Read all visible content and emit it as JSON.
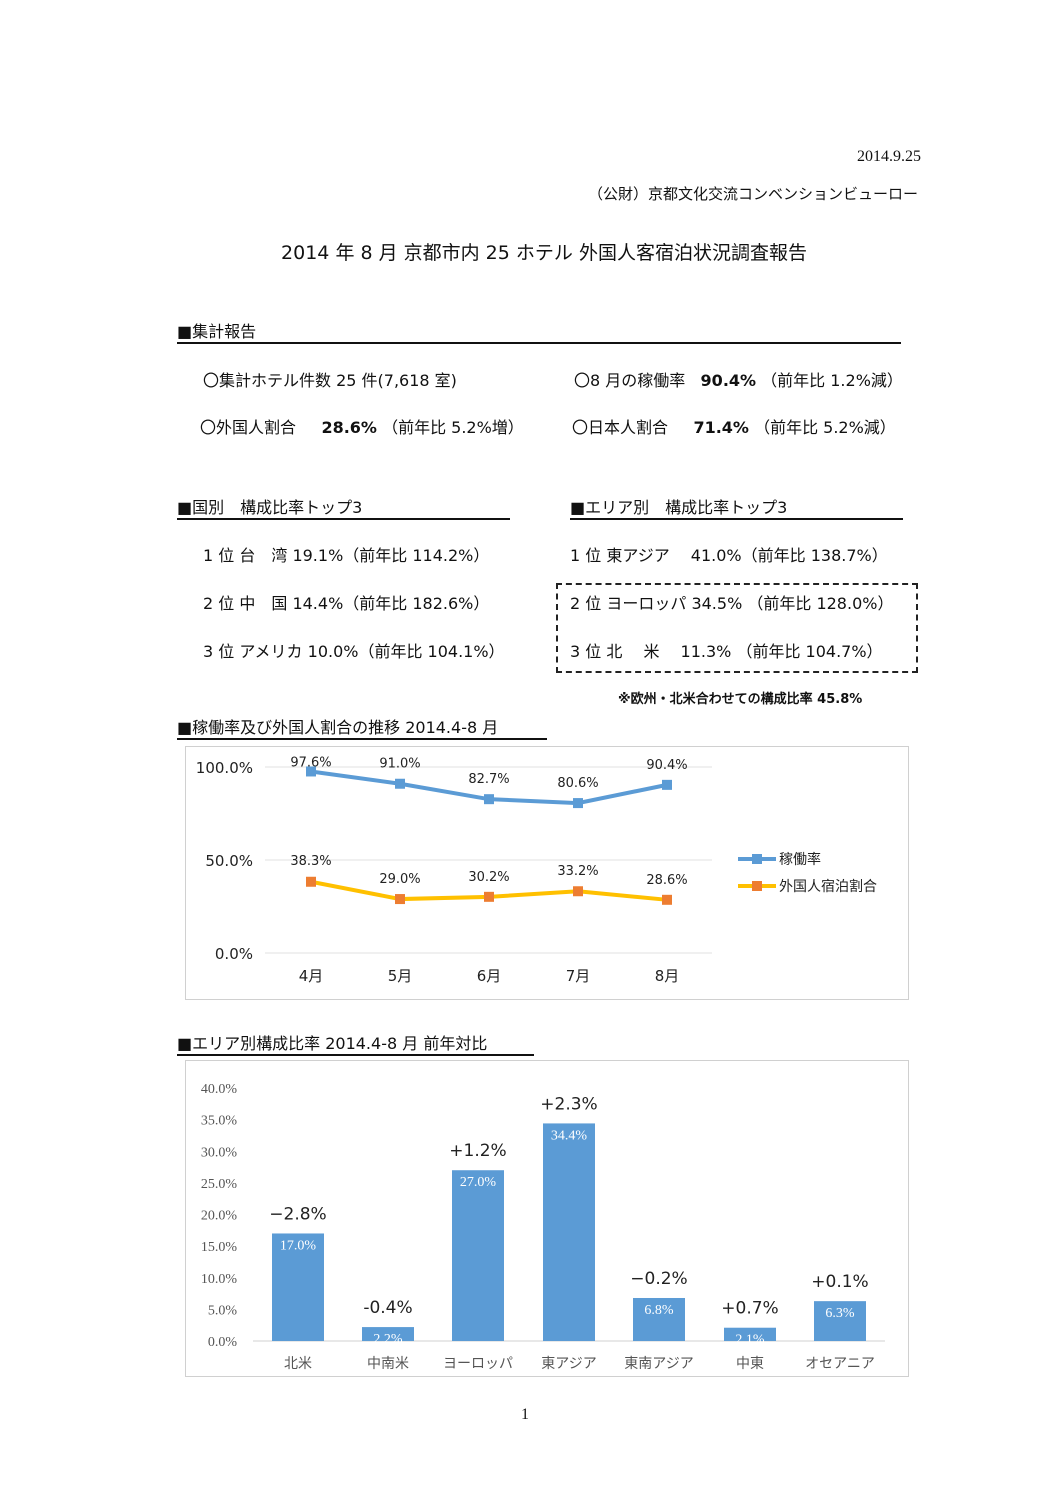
{
  "date": "2014.9.25",
  "organization": "（公財）京都文化交流コンベンションビューロー",
  "title": "2014 年 8 月  京都市内 25 ホテル  外国人客宿泊状況調査報告",
  "summary": {
    "heading": "■集計報告",
    "hotels": "〇集計ホテル件数 25 件(7,618 室)",
    "occupancy_label": "〇8 月の稼働率",
    "occupancy_value": "90.4%",
    "occupancy_yoy": "（前年比 1.2%減）",
    "foreign_label": "〇外国人割合",
    "foreign_value": "28.6%",
    "foreign_yoy": "（前年比 5.2%増）",
    "japanese_label": "〇日本人割合",
    "japanese_value": "71.4%",
    "japanese_yoy": "（前年比 5.2%減）"
  },
  "country_top3": {
    "heading": "■国別　構成比率トップ3",
    "items": [
      "1 位  台　湾  19.1%（前年比 114.2%）",
      "2 位  中　国  14.4%（前年比 182.6%）",
      "3 位  アメリカ 10.0%（前年比 104.1%）"
    ]
  },
  "area_top3": {
    "heading": "■エリア別　構成比率トップ3",
    "items": [
      "1 位  東アジア　 41.0%（前年比 138.7%）",
      "2 位  ヨーロッパ  34.5%  （前年比 128.0%）",
      "3 位  北　 米　 11.3%  （前年比 104.7%）"
    ],
    "note": "※欧州・北米合わせての構成比率 45.8%"
  },
  "chart_data": [
    {
      "type": "line",
      "heading": "■稼働率及び外国人割合の推移  2014.4-8 月",
      "categories": [
        "4月",
        "5月",
        "6月",
        "7月",
        "8月"
      ],
      "ylim": [
        0,
        100
      ],
      "yticks": [
        "0.0%",
        "50.0%",
        "100.0%"
      ],
      "grid": true,
      "legend": "right",
      "series": [
        {
          "name": "稼働率",
          "values": [
            97.6,
            91.0,
            82.7,
            80.6,
            90.4
          ],
          "labels": [
            "97.6%",
            "91.0%",
            "82.7%",
            "80.6%",
            "90.4%"
          ],
          "color": "#5b9bd5",
          "marker": "#5b9bd5"
        },
        {
          "name": "外国人宿泊割合",
          "values": [
            38.3,
            29.0,
            30.2,
            33.2,
            28.6
          ],
          "labels": [
            "38.3%",
            "29.0%",
            "30.2%",
            "33.2%",
            "28.6%"
          ],
          "color": "#ffc000",
          "marker": "#ed7d31"
        }
      ]
    },
    {
      "type": "bar",
      "heading": "■エリア別構成比率  2014.4-8 月  前年対比",
      "categories": [
        "北米",
        "中南米",
        "ヨーロッパ",
        "東アジア",
        "東南アジア",
        "中東",
        "オセアニア"
      ],
      "values": [
        17.0,
        2.2,
        27.0,
        34.4,
        6.8,
        2.1,
        6.3
      ],
      "labels": [
        "17.0%",
        "2.2%",
        "27.0%",
        "34.4%",
        "6.8%",
        "2.1%",
        "6.3%"
      ],
      "changes": [
        "−2.8%",
        "-0.4%",
        "+1.2%",
        "+2.3%",
        "−0.2%",
        "+0.7%",
        "+0.1%"
      ],
      "ylim": [
        0,
        40
      ],
      "yticks": [
        "0.0%",
        "5.0%",
        "10.0%",
        "15.0%",
        "20.0%",
        "25.0%",
        "30.0%",
        "35.0%",
        "40.0%"
      ],
      "color": "#5b9bd5"
    }
  ],
  "page_number": "1"
}
